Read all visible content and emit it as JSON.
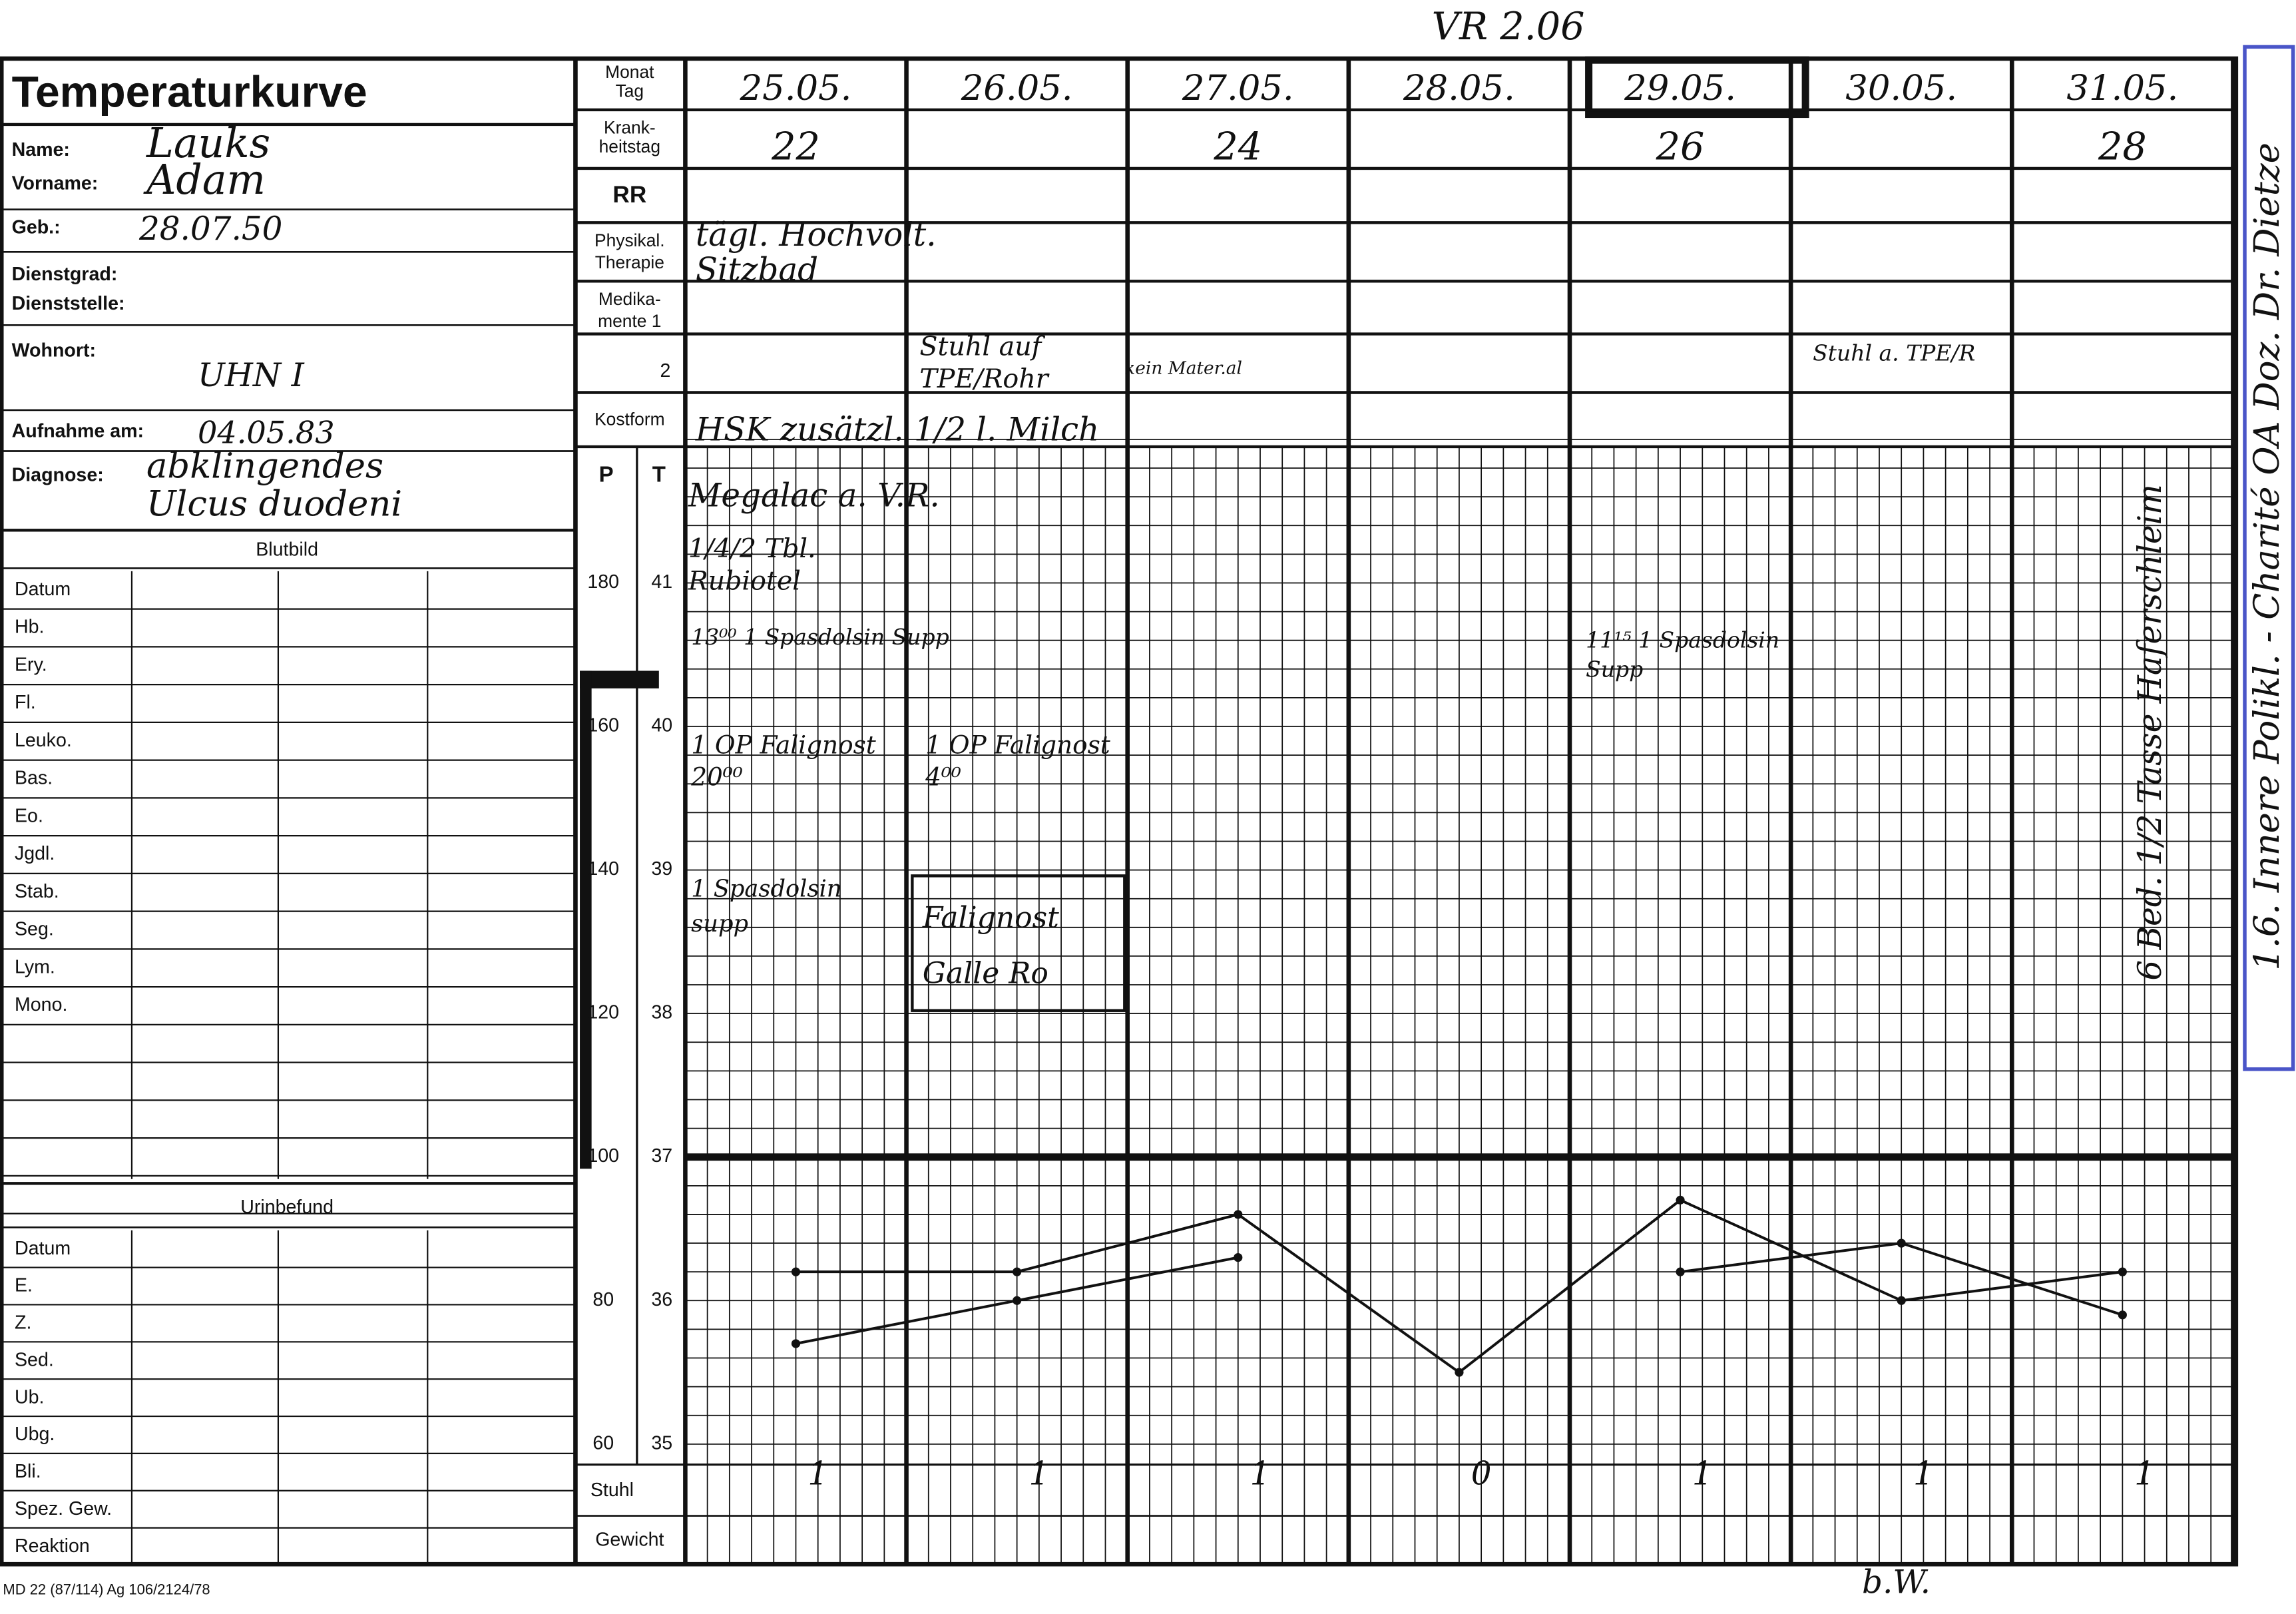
{
  "header": {
    "title": "Temperaturkurve",
    "stamp": "VR 2.06",
    "form_number": "MD 22 (87/114) Ag 106/2124/78",
    "bottom_note": "b.W."
  },
  "patient": {
    "name": {
      "label": "Name:",
      "value": "Lauks"
    },
    "vorname": {
      "label": "Vorname:",
      "value": "Adam"
    },
    "geb": {
      "label": "Geb.:",
      "value": "28.07.50"
    },
    "dienstgrad": {
      "label": "Dienstgrad:"
    },
    "dienststelle": {
      "label": "Dienststelle:"
    },
    "wohnort": {
      "label": "Wohnort:",
      "value": "UHN I"
    },
    "aufnahme": {
      "label": "Aufnahme am:",
      "value": "04.05.83"
    },
    "diagnose": {
      "label": "Diagnose:",
      "value": [
        "abklingendes",
        "Ulcus duodeni"
      ]
    }
  },
  "blutbild": {
    "title": "Blutbild",
    "rows": [
      "Datum",
      "Hb.",
      "Ery.",
      "Fl.",
      "Leuko.",
      "Bas.",
      "Eo.",
      "Jgdl.",
      "Stab.",
      "Seg.",
      "Lym.",
      "Mono."
    ]
  },
  "urinbefund": {
    "title": "Urinbefund",
    "rows": [
      "Datum",
      "E.",
      "Z.",
      "Sed.",
      "Ub.",
      "Ubg.",
      "Bli.",
      "Spez. Gew.",
      "Reaktion"
    ]
  },
  "row_labels": {
    "monat_tag": [
      "Monat",
      "Tag"
    ],
    "krankheitstag": [
      "Krank-",
      "heitstag"
    ],
    "rr": "RR",
    "therapie": [
      "Physikal.",
      "Therapie"
    ],
    "medikamente_1": [
      "Medika-",
      "mente 1"
    ],
    "medikamente_2": "2",
    "kostform": "Kostform",
    "p": "P",
    "t": "T",
    "stuhl": "Stuhl",
    "gewicht": "Gewicht"
  },
  "scale": {
    "P": [
      180,
      160,
      140,
      120,
      100,
      80,
      60
    ],
    "T": [
      41,
      40,
      39,
      38,
      37,
      36,
      35
    ]
  },
  "dates": [
    "25.05.",
    "26.05.",
    "27.05.",
    "28.05.",
    "29.05.",
    "30.05.",
    "31.05."
  ],
  "krankheitstag": [
    "22",
    null,
    "24",
    null,
    "26",
    null,
    "28"
  ],
  "stuhl": [
    "1",
    "1",
    "1",
    "0",
    "1",
    "1",
    "1"
  ],
  "notes": {
    "therapie": [
      "tägl. Hochvolt.",
      "Sitzbad"
    ],
    "medikamente_2a": [
      "Stuhl auf",
      "TPE/Rohr"
    ],
    "medikamente_2b": "kein Mater.al",
    "medikamente_2c": "Stuhl a. TPE/R",
    "kostform": "HSK zusätzl. 1/2 l. Milch",
    "megalac": "Megalac a. V.R.",
    "tbl": "1/4/2 Tbl.",
    "rubiotel": "Rubiotel",
    "spasdolsin_1": "13⁰⁰ 1 Spasdolsin Supp",
    "spasdolsin_2": [
      "11¹⁵ 1 Spasdolsin",
      "Supp"
    ],
    "falignost_1": [
      "1 OP Falignost",
      "20⁰⁰"
    ],
    "falignost_2": [
      "1 OP Falignost",
      "4⁰⁰"
    ],
    "spasdolsin_3": [
      "1 Spasdolsin",
      "supp"
    ],
    "box": [
      "Falignost",
      "Galle Ro"
    ],
    "side_stamp": "1.6. Innere Polikl. - Charité OA Doz. Dr. Dietze",
    "side_note": "6 Bed. 1/2 Tasse Haferschleim"
  },
  "temperature_curves": [
    {
      "values": [
        36.2,
        36.2,
        36.6,
        35.5,
        36.7,
        36.0,
        36.2
      ]
    },
    {
      "values": [
        35.7,
        36.0,
        36.3,
        null,
        36.2,
        36.4,
        35.9
      ]
    }
  ]
}
